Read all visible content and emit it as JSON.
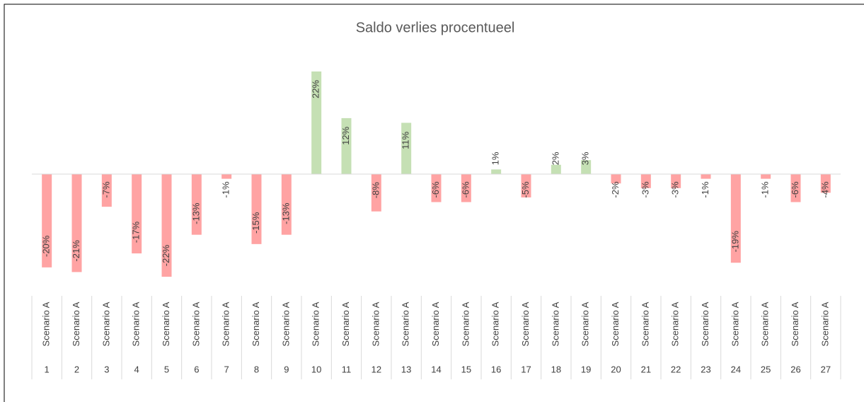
{
  "chart_data": {
    "type": "bar",
    "title": "Saldo verlies procentueel",
    "categories": [
      "1",
      "2",
      "3",
      "4",
      "5",
      "6",
      "7",
      "8",
      "9",
      "10",
      "11",
      "12",
      "13",
      "14",
      "15",
      "16",
      "17",
      "18",
      "19",
      "20",
      "21",
      "22",
      "23",
      "24",
      "25",
      "26",
      "27"
    ],
    "groups": [
      "Scenario A",
      "Scenario A",
      "Scenario A",
      "Scenario A",
      "Scenario A",
      "Scenario A",
      "Scenario A",
      "Scenario A",
      "Scenario A",
      "Scenario A",
      "Scenario A",
      "Scenario A",
      "Scenario A",
      "Scenario A",
      "Scenario A",
      "Scenario A",
      "Scenario A",
      "Scenario A",
      "Scenario A",
      "Scenario A",
      "Scenario A",
      "Scenario A",
      "Scenario A",
      "Scenario A",
      "Scenario A",
      "Scenario A",
      "Scenario A"
    ],
    "values": [
      -20,
      -21,
      -7,
      -17,
      -22,
      -13,
      -1,
      -15,
      -13,
      22,
      12,
      -8,
      11,
      -6,
      -6,
      1,
      -5,
      2,
      3,
      -2,
      -3,
      -3,
      -1,
      -19,
      -1,
      -6,
      -4
    ],
    "value_labels": [
      "-20%",
      "-21%",
      "-7%",
      "-17%",
      "-22%",
      "-13%",
      "-1%",
      "-15%",
      "-13%",
      "22%",
      "12%",
      "-8%",
      "11%",
      "-6%",
      "-6%",
      "1%",
      "-5%",
      "2%",
      "3%",
      "-2%",
      "-3%",
      "-3%",
      "-1%",
      "-19%",
      "-1%",
      "-6%",
      "-4%"
    ],
    "positive_color": "#c5e0b4",
    "negative_color": "#ffa3a3"
  }
}
